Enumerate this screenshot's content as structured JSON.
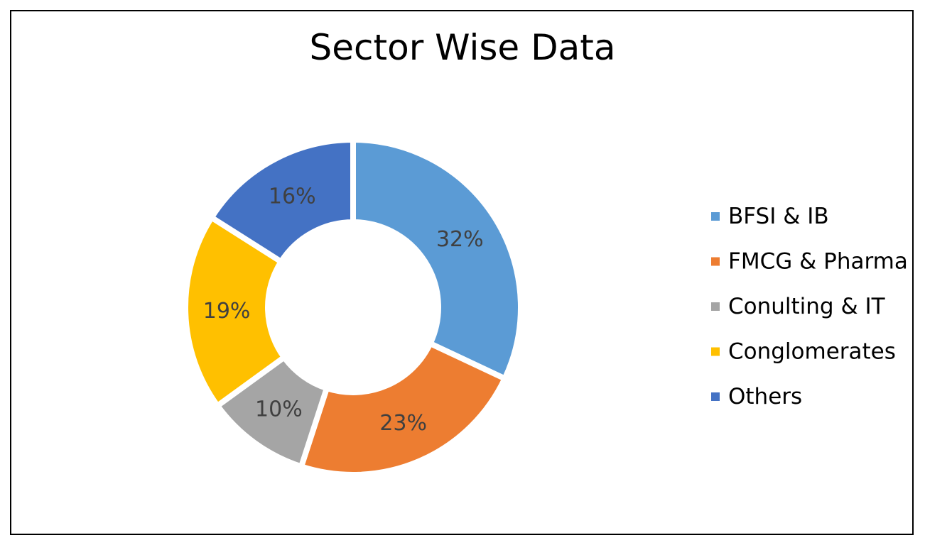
{
  "chart_data": {
    "type": "pie",
    "variant": "donut",
    "title": "Sector Wise Data",
    "categories": [
      "BFSI & IB",
      "FMCG & Pharma",
      "Conulting & IT",
      "Conglomerates",
      "Others"
    ],
    "values": [
      32,
      23,
      10,
      19,
      16
    ],
    "labels": [
      "32%",
      "23%",
      "10%",
      "19%",
      "16%"
    ],
    "colors": [
      "#5B9BD5",
      "#ED7D31",
      "#A5A5A5",
      "#FFC000",
      "#4472C4"
    ],
    "legend": "right"
  }
}
